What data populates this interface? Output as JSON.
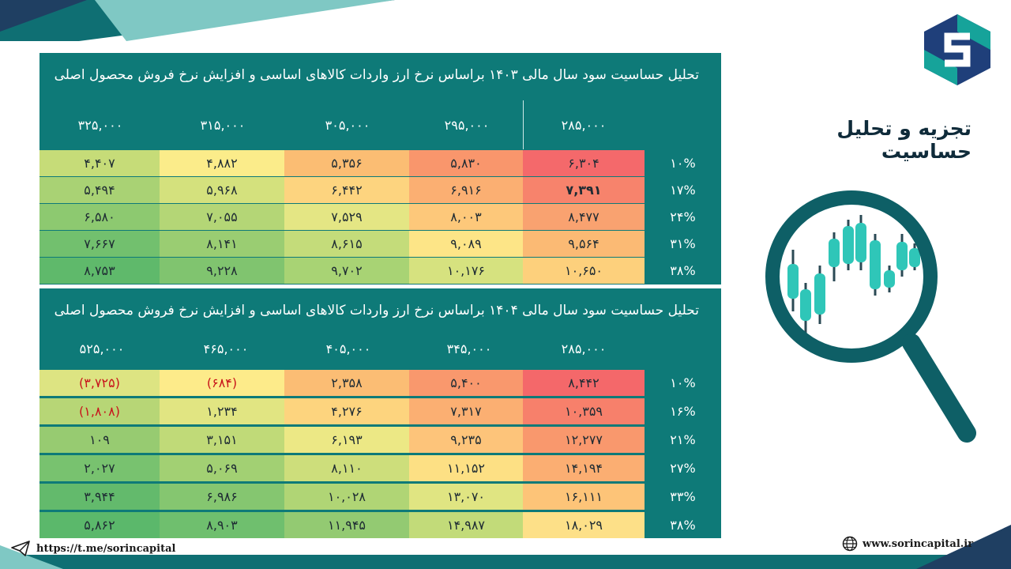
{
  "title": "تجزیه و تحلیل حساسیت",
  "table1": {
    "title": "تحلیل حساسیت سود سال مالی ۱۴۰۳ براساس نرخ ارز واردات کالاهای اساسی و افزایش نرخ فروش محصول اصلی",
    "columns": [
      "۳۲۵,۰۰۰",
      "۳۱۵,۰۰۰",
      "۳۰۵,۰۰۰",
      "۲۹۵,۰۰۰",
      "۲۸۵,۰۰۰"
    ],
    "rows": [
      {
        "pct": "۱۰%",
        "values": [
          "۴,۴۰۷",
          "۴,۸۸۲",
          "۵,۳۵۶",
          "۵,۸۳۰",
          "۶,۳۰۴"
        ]
      },
      {
        "pct": "۱۷%",
        "values": [
          "۵,۴۹۴",
          "۵,۹۶۸",
          "۶,۴۴۲",
          "۶,۹۱۶",
          "۷,۳۹۱"
        ]
      },
      {
        "pct": "۲۴%",
        "values": [
          "۶,۵۸۰",
          "۷,۰۵۵",
          "۷,۵۲۹",
          "۸,۰۰۳",
          "۸,۴۷۷"
        ]
      },
      {
        "pct": "۳۱%",
        "values": [
          "۷,۶۶۷",
          "۸,۱۴۱",
          "۸,۶۱۵",
          "۹,۰۸۹",
          "۹,۵۶۴"
        ]
      },
      {
        "pct": "۳۸%",
        "values": [
          "۸,۷۵۳",
          "۹,۲۲۸",
          "۹,۷۰۲",
          "۱۰,۱۷۶",
          "۱۰,۶۵۰"
        ]
      }
    ]
  },
  "table2": {
    "title": "تحلیل حساسیت سود سال مالی ۱۴۰۴ براساس نرخ ارز واردات کالاهای اساسی و افزایش نرخ فروش محصول اصلی",
    "columns": [
      "۵۲۵,۰۰۰",
      "۴۶۵,۰۰۰",
      "۴۰۵,۰۰۰",
      "۳۴۵,۰۰۰",
      "۲۸۵,۰۰۰"
    ],
    "rows": [
      {
        "pct": "۱۰%",
        "values": [
          "(۳,۷۲۵)",
          "(۶۸۴)",
          "۲,۳۵۸",
          "۵,۴۰۰",
          "۸,۴۴۲"
        ]
      },
      {
        "pct": "۱۶%",
        "values": [
          "(۱,۸۰۸)",
          "۱,۲۳۴",
          "۴,۲۷۶",
          "۷,۳۱۷",
          "۱۰,۳۵۹"
        ]
      },
      {
        "pct": "۲۱%",
        "values": [
          "۱۰۹",
          "۳,۱۵۱",
          "۶,۱۹۳",
          "۹,۲۳۵",
          "۱۲,۲۷۷"
        ]
      },
      {
        "pct": "۲۷%",
        "values": [
          "۲,۰۲۷",
          "۵,۰۶۹",
          "۸,۱۱۰",
          "۱۱,۱۵۲",
          "۱۴,۱۹۴"
        ]
      },
      {
        "pct": "۳۳%",
        "values": [
          "۳,۹۴۴",
          "۶,۹۸۶",
          "۱۰,۰۲۸",
          "۱۳,۰۷۰",
          "۱۶,۱۱۱"
        ]
      },
      {
        "pct": "۳۸%",
        "values": [
          "۵,۸۶۲",
          "۸,۹۰۳",
          "۱۱,۹۴۵",
          "۱۴,۹۸۷",
          "۱۸,۰۲۹"
        ]
      }
    ]
  },
  "footer": {
    "telegram": "https://t.me/sorincapital",
    "website": "www.sorincapital.ir"
  },
  "icons": {
    "telegram": "telegram-icon",
    "globe": "globe-icon",
    "logo": "sorin-logo",
    "magnifier": "magnifier-chart-icon"
  },
  "colors": {
    "panel": "#0e7a78",
    "red": "#f4686a",
    "orange": "#f9a070",
    "yellow": "#fbe98c",
    "green": "#6cbf6f"
  }
}
